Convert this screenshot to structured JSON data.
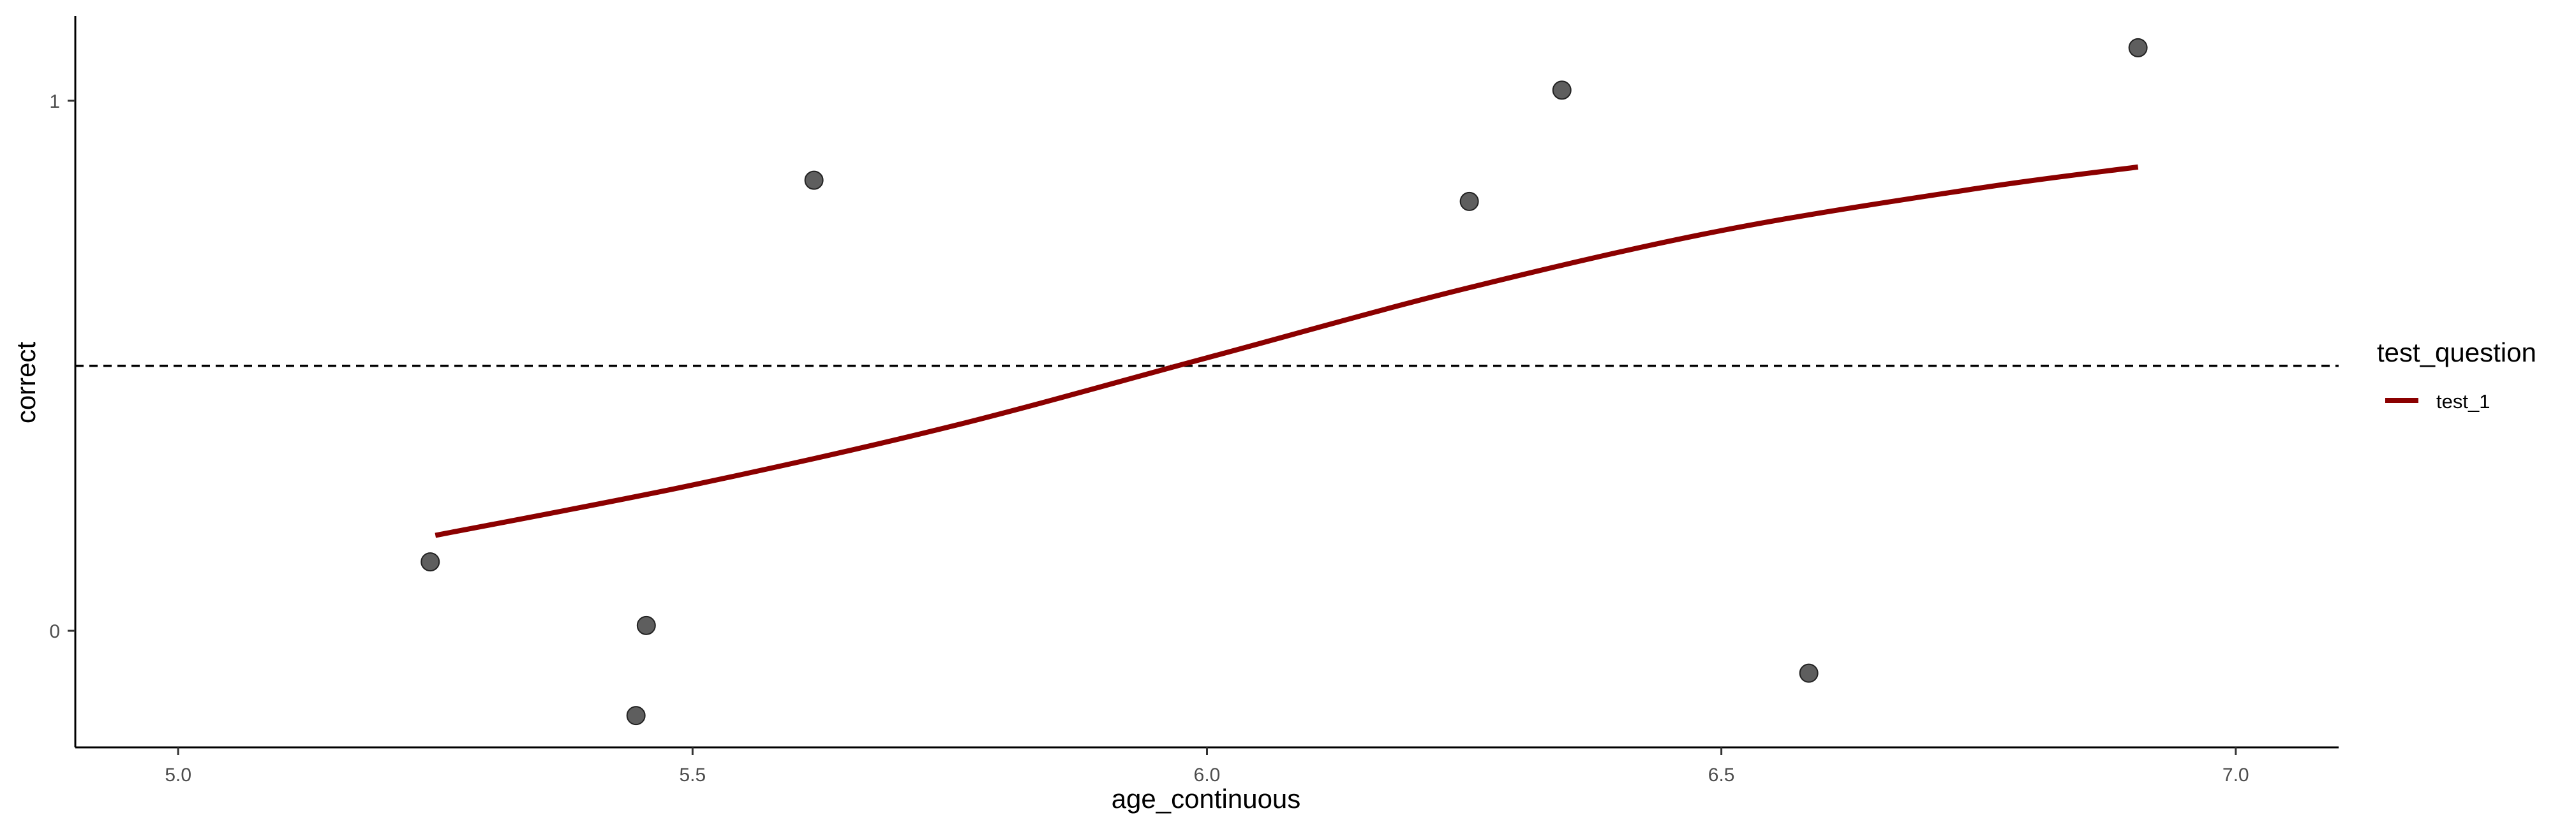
{
  "chart_data": {
    "type": "scatter",
    "title": "",
    "xlabel": "age_continuous",
    "ylabel": "correct",
    "xlim": [
      4.9,
      7.1
    ],
    "ylim": [
      -0.22,
      1.16
    ],
    "x_ticks": [
      5.0,
      5.5,
      6.0,
      6.5,
      7.0
    ],
    "x_tick_labels": [
      "5.0",
      "5.5",
      "6.0",
      "6.5",
      "7.0"
    ],
    "y_ticks": [
      0,
      1
    ],
    "y_tick_labels": [
      "0",
      "1"
    ],
    "grid": false,
    "points": [
      {
        "x": 5.245,
        "y": 0.13
      },
      {
        "x": 5.445,
        "y": -0.16
      },
      {
        "x": 5.455,
        "y": 0.01
      },
      {
        "x": 5.618,
        "y": 0.85
      },
      {
        "x": 6.255,
        "y": 0.81
      },
      {
        "x": 6.345,
        "y": 1.02
      },
      {
        "x": 6.585,
        "y": -0.08
      },
      {
        "x": 6.905,
        "y": 1.1
      }
    ],
    "series": [
      {
        "name": "test_1",
        "color": "#8b0000",
        "x": [
          5.25,
          5.5,
          5.75,
          6.0,
          6.25,
          6.5,
          6.75,
          6.905
        ],
        "y": [
          0.18,
          0.275,
          0.385,
          0.515,
          0.645,
          0.755,
          0.835,
          0.875
        ]
      }
    ],
    "reference_line": {
      "y": 0.5,
      "style": "dashed",
      "color": "#000000"
    },
    "point_color": "#555555",
    "legend": {
      "title": "test_question",
      "position": "right",
      "entries": [
        "test_1"
      ]
    }
  }
}
